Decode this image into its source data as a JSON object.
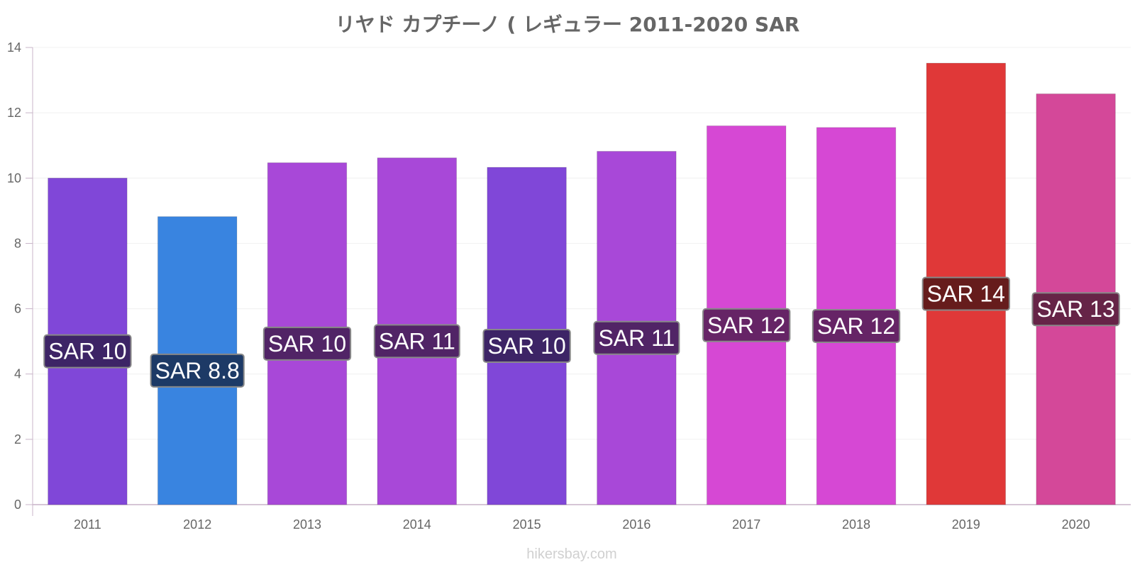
{
  "chart_data": {
    "type": "bar",
    "title": "リヤド カプチーノ ( レギュラー 2011-2020 SAR",
    "xlabel": "",
    "ylabel": "",
    "categories": [
      "2011",
      "2012",
      "2013",
      "2014",
      "2015",
      "2016",
      "2017",
      "2018",
      "2019",
      "2020"
    ],
    "values": [
      10.0,
      8.82,
      10.47,
      10.62,
      10.33,
      10.82,
      11.6,
      11.55,
      13.52,
      12.58
    ],
    "data_labels": [
      "SAR 10",
      "SAR 8.8",
      "SAR 10",
      "SAR 11",
      "SAR 10",
      "SAR 11",
      "SAR 12",
      "SAR 12",
      "SAR 14",
      "SAR 13"
    ],
    "bar_colors": [
      "#8047d8",
      "#3984e0",
      "#a848d8",
      "#a848d8",
      "#8047d8",
      "#a848d8",
      "#d648d4",
      "#d648d4",
      "#e03838",
      "#d44899"
    ],
    "label_box_colors": [
      "#3d2466",
      "#1d3a66",
      "#512466",
      "#512466",
      "#3d2466",
      "#512466",
      "#662466",
      "#662466",
      "#661c1c",
      "#662447"
    ],
    "ylim": [
      0,
      14
    ],
    "yticks": [
      0,
      2,
      4,
      6,
      8,
      10,
      12,
      14
    ],
    "grid": true,
    "legend": "none"
  },
  "source": "hikersbay.com"
}
